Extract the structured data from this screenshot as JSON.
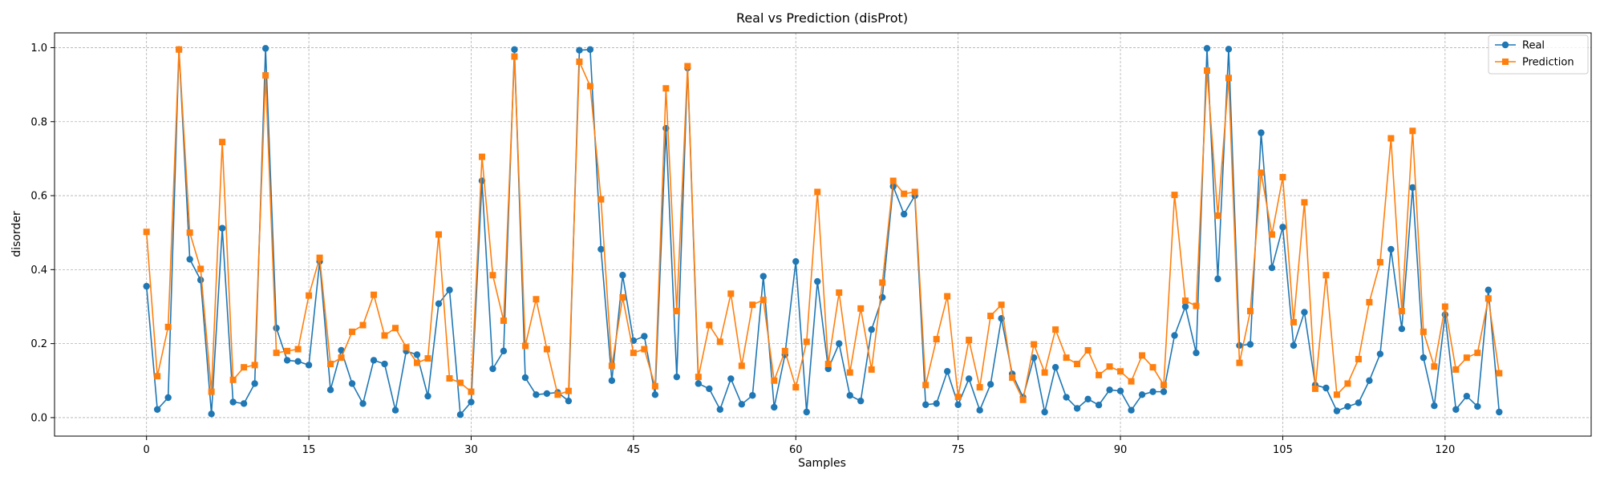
{
  "chart_data": {
    "type": "line",
    "title": "Real vs Prediction (disProt)",
    "xlabel": "Samples",
    "ylabel": "disorder",
    "xlim": [
      -8.5,
      133.5
    ],
    "ylim": [
      -0.05,
      1.04
    ],
    "xticks": [
      0,
      15,
      30,
      45,
      60,
      75,
      90,
      105,
      120
    ],
    "yticks": [
      0.0,
      0.2,
      0.4,
      0.6,
      0.8,
      1.0
    ],
    "grid": true,
    "legend_position": "top-right",
    "x": [
      0,
      1,
      2,
      3,
      4,
      5,
      6,
      7,
      8,
      9,
      10,
      11,
      12,
      13,
      14,
      15,
      16,
      17,
      18,
      19,
      20,
      21,
      22,
      23,
      24,
      25,
      26,
      27,
      28,
      29,
      30,
      31,
      32,
      33,
      34,
      35,
      36,
      37,
      38,
      39,
      40,
      41,
      42,
      43,
      44,
      45,
      46,
      47,
      48,
      49,
      50,
      51,
      52,
      53,
      54,
      55,
      56,
      57,
      58,
      59,
      60,
      61,
      62,
      63,
      64,
      65,
      66,
      67,
      68,
      69,
      70,
      71,
      72,
      73,
      74,
      75,
      76,
      77,
      78,
      79,
      80,
      81,
      82,
      83,
      84,
      85,
      86,
      87,
      88,
      89,
      90,
      91,
      92,
      93,
      94,
      95,
      96,
      97,
      98,
      99,
      100,
      101,
      102,
      103,
      104,
      105,
      106,
      107,
      108,
      109,
      110,
      111,
      112,
      113,
      114,
      115,
      116,
      117,
      118,
      119,
      120,
      121,
      122,
      123,
      124,
      125
    ],
    "series": [
      {
        "name": "Real",
        "color": "#1f77b4",
        "marker": "circle",
        "values": [
          0.355,
          0.022,
          0.054,
          0.995,
          0.428,
          0.372,
          0.01,
          0.512,
          0.042,
          0.038,
          0.092,
          0.998,
          0.242,
          0.155,
          0.152,
          0.142,
          0.422,
          0.075,
          0.182,
          0.092,
          0.038,
          0.155,
          0.145,
          0.02,
          0.18,
          0.17,
          0.058,
          0.308,
          0.345,
          0.008,
          0.042,
          0.64,
          0.132,
          0.18,
          0.995,
          0.108,
          0.062,
          0.065,
          0.068,
          0.045,
          0.993,
          0.995,
          0.455,
          0.1,
          0.385,
          0.208,
          0.22,
          0.062,
          0.782,
          0.11,
          0.945,
          0.092,
          0.078,
          0.022,
          0.105,
          0.036,
          0.06,
          0.382,
          0.028,
          0.17,
          0.422,
          0.015,
          0.368,
          0.132,
          0.2,
          0.06,
          0.045,
          0.238,
          0.325,
          0.625,
          0.55,
          0.6,
          0.035,
          0.038,
          0.125,
          0.035,
          0.105,
          0.02,
          0.09,
          0.268,
          0.118,
          0.055,
          0.162,
          0.015,
          0.136,
          0.055,
          0.025,
          0.05,
          0.034,
          0.075,
          0.072,
          0.02,
          0.062,
          0.07,
          0.07,
          0.222,
          0.3,
          0.175,
          0.998,
          0.375,
          0.996,
          0.195,
          0.198,
          0.77,
          0.405,
          0.515,
          0.195,
          0.285,
          0.088,
          0.08,
          0.018,
          0.03,
          0.04,
          0.1,
          0.172,
          0.455,
          0.24,
          0.622,
          0.162,
          0.032,
          0.278,
          0.022,
          0.058,
          0.03,
          0.345,
          0.015
        ]
      },
      {
        "name": "Prediction",
        "color": "#ff7f0e",
        "marker": "square",
        "values": [
          0.502,
          0.112,
          0.245,
          0.995,
          0.5,
          0.402,
          0.07,
          0.745,
          0.102,
          0.136,
          0.142,
          0.925,
          0.175,
          0.18,
          0.185,
          0.33,
          0.432,
          0.145,
          0.162,
          0.232,
          0.25,
          0.332,
          0.222,
          0.242,
          0.19,
          0.148,
          0.16,
          0.495,
          0.106,
          0.094,
          0.07,
          0.705,
          0.385,
          0.262,
          0.976,
          0.194,
          0.32,
          0.185,
          0.062,
          0.072,
          0.962,
          0.896,
          0.59,
          0.14,
          0.325,
          0.175,
          0.185,
          0.085,
          0.89,
          0.288,
          0.95,
          0.11,
          0.25,
          0.205,
          0.335,
          0.14,
          0.305,
          0.318,
          0.1,
          0.18,
          0.082,
          0.205,
          0.61,
          0.145,
          0.338,
          0.122,
          0.295,
          0.13,
          0.365,
          0.64,
          0.605,
          0.61,
          0.088,
          0.212,
          0.328,
          0.056,
          0.21,
          0.082,
          0.275,
          0.305,
          0.108,
          0.048,
          0.198,
          0.122,
          0.238,
          0.162,
          0.145,
          0.182,
          0.115,
          0.138,
          0.125,
          0.098,
          0.168,
          0.136,
          0.088,
          0.602,
          0.316,
          0.302,
          0.938,
          0.546,
          0.918,
          0.148,
          0.288,
          0.662,
          0.495,
          0.65,
          0.258,
          0.582,
          0.078,
          0.385,
          0.062,
          0.092,
          0.158,
          0.312,
          0.42,
          0.755,
          0.288,
          0.775,
          0.232,
          0.138,
          0.3,
          0.13,
          0.162,
          0.175,
          0.322,
          0.12
        ]
      }
    ]
  }
}
